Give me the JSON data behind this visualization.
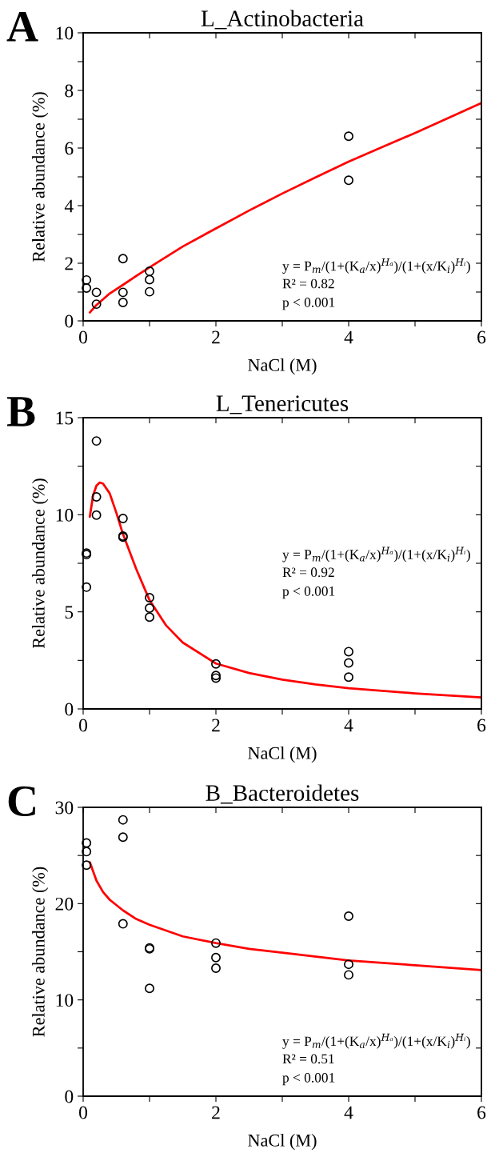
{
  "chart_data": [
    {
      "type": "scatter",
      "title": "L_Actinobacteria",
      "xlabel": "NaCl (M)",
      "ylabel": "Relative abundance (%)",
      "grid": false,
      "xlim": [
        0,
        6
      ],
      "xticks": [
        0,
        {
          "value": 1,
          "label": null
        },
        2,
        {
          "value": 3,
          "label": null
        },
        4,
        {
          "value": 5,
          "label": null
        },
        6
      ],
      "ylim": [
        0,
        10
      ],
      "yticks": [
        0,
        {
          "value": 1,
          "label": null
        },
        2,
        {
          "value": 3,
          "label": null
        },
        4,
        {
          "value": 5,
          "label": null
        },
        6,
        {
          "value": 7,
          "label": null
        },
        8,
        {
          "value": 9,
          "label": null
        },
        10
      ],
      "annotations": [
        "A",
        "y = P$_{m}$/(1+(K$_{a}$/x)$^{Hₐ}$)/(1+(x/K$_{i}$)$^{Hᵢ}$)",
        "R² = 0.82",
        "p < 0.001"
      ],
      "series": [
        {
          "marker": "circle",
          "color": "#000000",
          "x": [
            0.05,
            0.05,
            0.2,
            0.2,
            0.6,
            0.6,
            0.6,
            1,
            1,
            1,
            4,
            4
          ],
          "values": [
            1.42,
            1.14,
            0.99,
            0.58,
            2.16,
            0.99,
            0.64,
            1.72,
            1.43,
            1.01,
            6.41,
            4.88
          ]
        },
        {
          "type": "line",
          "color": "#ff0000",
          "x": [
            0.1,
            0.2,
            0.4,
            0.6,
            0.8,
            1,
            1.5,
            2,
            2.5,
            3,
            3.5,
            4,
            4.5,
            5,
            5.5,
            6
          ],
          "values": [
            0.29,
            0.55,
            0.95,
            1.25,
            1.56,
            1.86,
            2.58,
            3.21,
            3.83,
            4.42,
            4.98,
            5.53,
            6.03,
            6.52,
            7.04,
            7.56
          ]
        }
      ]
    },
    {
      "type": "scatter",
      "title": "L_Tenericutes",
      "xlabel": "NaCl (M)",
      "ylabel": "Relative abundance (%)",
      "grid": false,
      "xlim": [
        0,
        6
      ],
      "xticks": [
        0,
        {
          "value": 1,
          "label": null
        },
        2,
        {
          "value": 3,
          "label": null
        },
        4,
        {
          "value": 5,
          "label": null
        },
        6
      ],
      "ylim": [
        0,
        15
      ],
      "yticks": [
        0,
        {
          "value": 2.5,
          "label": null
        },
        5,
        {
          "value": 7.5,
          "label": null
        },
        10,
        {
          "value": 12.5,
          "label": null
        },
        15
      ],
      "annotations": [
        "B",
        "y = P$_{m}$/(1+(K$_{a}$/x)$^{Hₐ}$)/(1+(x/K$_{i}$)$^{Hᵢ}$)",
        "R² = 0.92",
        "p < 0.001"
      ],
      "series": [
        {
          "marker": "circle",
          "color": "#000000",
          "x": [
            0.05,
            0.05,
            0.05,
            0.2,
            0.2,
            0.2,
            0.6,
            0.6,
            0.6,
            1,
            1,
            1,
            2,
            2,
            2,
            4,
            4,
            4
          ],
          "values": [
            8.03,
            7.95,
            6.27,
            13.8,
            10.92,
            9.98,
            9.81,
            8.9,
            8.85,
            5.73,
            5.19,
            4.73,
            2.32,
            1.72,
            1.59,
            2.95,
            2.37,
            1.64
          ]
        },
        {
          "type": "line",
          "color": "#ff0000",
          "x": [
            0.1,
            0.15,
            0.2,
            0.25,
            0.3,
            0.4,
            0.5,
            0.6,
            0.8,
            1,
            1.25,
            1.5,
            2,
            2.5,
            3,
            3.5,
            4,
            5,
            6
          ],
          "values": [
            9.9,
            11.0,
            11.5,
            11.66,
            11.6,
            11.1,
            10.1,
            9.0,
            7.2,
            5.6,
            4.3,
            3.42,
            2.34,
            1.85,
            1.51,
            1.26,
            1.07,
            0.8,
            0.59
          ]
        }
      ]
    },
    {
      "type": "scatter",
      "title": "B_Bacteroidetes",
      "xlabel": "NaCl (M)",
      "ylabel": "Relative abundance (%)",
      "grid": false,
      "xlim": [
        0,
        6
      ],
      "xticks": [
        0,
        {
          "value": 1,
          "label": null
        },
        2,
        {
          "value": 3,
          "label": null
        },
        4,
        {
          "value": 5,
          "label": null
        },
        6
      ],
      "ylim": [
        0,
        30
      ],
      "yticks": [
        0,
        {
          "value": 5,
          "label": null
        },
        10,
        {
          "value": 15,
          "label": null
        },
        20,
        {
          "value": 25,
          "label": null
        },
        30
      ],
      "annotations": [
        "C",
        "y = P$_{m}$/(1+(K$_{a}$/x)$^{Hₐ}$)/(1+(x/K$_{i}$)$^{Hᵢ}$)",
        "R² = 0.51",
        "p < 0.001"
      ],
      "series": [
        {
          "marker": "circle",
          "color": "#000000",
          "x": [
            0.05,
            0.05,
            0.05,
            0.6,
            0.6,
            0.6,
            1,
            1,
            1,
            2,
            2,
            2,
            4,
            4,
            4
          ],
          "values": [
            26.3,
            25.4,
            24.0,
            28.7,
            26.9,
            17.9,
            15.4,
            15.3,
            11.2,
            15.9,
            14.4,
            13.3,
            18.7,
            13.7,
            12.6
          ]
        },
        {
          "type": "line",
          "color": "#ff0000",
          "x": [
            0.1,
            0.2,
            0.3,
            0.4,
            0.6,
            0.8,
            1,
            1.5,
            2,
            2.5,
            3,
            4,
            5,
            6
          ],
          "values": [
            24.3,
            22.4,
            21.2,
            20.4,
            19.3,
            18.4,
            17.8,
            16.6,
            15.9,
            15.3,
            14.9,
            14.1,
            13.6,
            13.1
          ]
        }
      ]
    }
  ]
}
